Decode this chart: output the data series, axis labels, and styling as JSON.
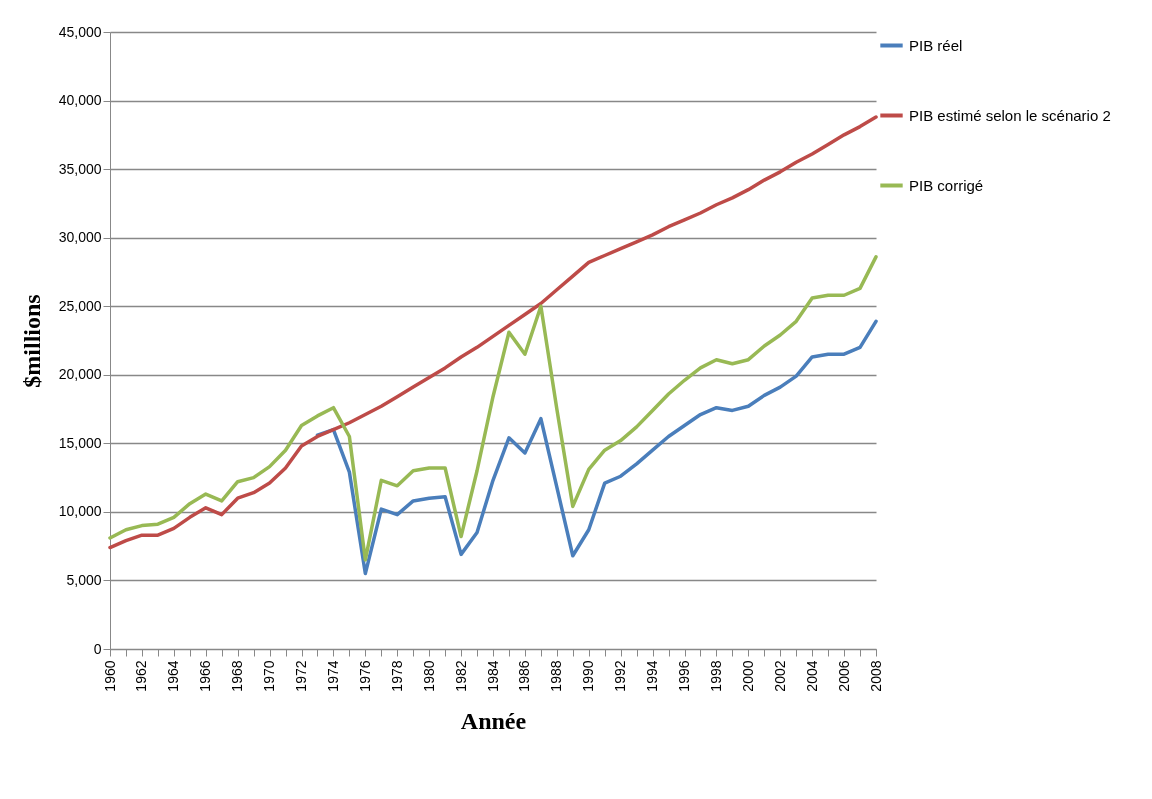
{
  "chart_data": {
    "type": "line",
    "xlabel": "Année",
    "ylabel": "$millions",
    "x": [
      1960,
      1961,
      1962,
      1963,
      1964,
      1965,
      1966,
      1967,
      1968,
      1969,
      1970,
      1971,
      1972,
      1973,
      1974,
      1975,
      1976,
      1977,
      1978,
      1979,
      1980,
      1981,
      1982,
      1983,
      1984,
      1985,
      1986,
      1987,
      1988,
      1989,
      1990,
      1991,
      1992,
      1993,
      1994,
      1995,
      1996,
      1997,
      1998,
      1999,
      2000,
      2001,
      2002,
      2003,
      2004,
      2005,
      2006,
      2007,
      2008
    ],
    "series": [
      {
        "name": "PIB réel",
        "color": "#4a7ebb",
        "values": [
          null,
          null,
          null,
          null,
          null,
          null,
          null,
          null,
          null,
          null,
          null,
          null,
          null,
          15600,
          16000,
          12900,
          5500,
          10200,
          9800,
          10800,
          11000,
          11100,
          6900,
          8500,
          12300,
          15400,
          14300,
          16800,
          11800,
          6800,
          8700,
          12100,
          12600,
          13500,
          14500,
          15500,
          16300,
          17100,
          17600,
          17400,
          17700,
          18500,
          19100,
          19900,
          21300,
          21500,
          21500,
          22000,
          23900
        ]
      },
      {
        "name": "PIB estimé selon le scénario 2",
        "color": "#be4b48",
        "values": [
          7400,
          7900,
          8300,
          8300,
          8800,
          9600,
          10300,
          9800,
          11000,
          11400,
          12100,
          13200,
          14800,
          15500,
          16000,
          16500,
          17100,
          17700,
          18400,
          19100,
          19800,
          20500,
          21300,
          22000,
          22800,
          23600,
          24400,
          25200,
          26200,
          27200,
          28200,
          28700,
          29200,
          29700,
          30200,
          30800,
          31300,
          31800,
          32400,
          32900,
          33500,
          34200,
          34800,
          35500,
          36100,
          36800,
          37500,
          38100,
          38800
        ]
      },
      {
        "name": "PIB corrigé",
        "color": "#98b954",
        "values": [
          8100,
          8700,
          9000,
          9100,
          9600,
          10600,
          11300,
          10800,
          12200,
          12500,
          13300,
          14500,
          16300,
          17000,
          17600,
          15500,
          6500,
          12300,
          11900,
          13000,
          13200,
          13200,
          8200,
          13000,
          18400,
          23100,
          21500,
          25000,
          17500,
          10400,
          13100,
          14500,
          15200,
          16200,
          17400,
          18600,
          19600,
          20500,
          21100,
          20800,
          21100,
          22100,
          22900,
          23900,
          25600,
          25800,
          25800,
          26300,
          28600
        ]
      }
    ],
    "xlim": [
      1960,
      2008
    ],
    "xticks": [
      1960,
      {
        "value": 1961,
        "label": null
      },
      1962,
      {
        "value": 1963,
        "label": null
      },
      1964,
      {
        "value": 1965,
        "label": null
      },
      1966,
      {
        "value": 1967,
        "label": null
      },
      1968,
      {
        "value": 1969,
        "label": null
      },
      1970,
      {
        "value": 1971,
        "label": null
      },
      1972,
      {
        "value": 1973,
        "label": null
      },
      1974,
      {
        "value": 1975,
        "label": null
      },
      1976,
      {
        "value": 1977,
        "label": null
      },
      1978,
      {
        "value": 1979,
        "label": null
      },
      1980,
      {
        "value": 1981,
        "label": null
      },
      1982,
      {
        "value": 1983,
        "label": null
      },
      1984,
      {
        "value": 1985,
        "label": null
      },
      1986,
      {
        "value": 1987,
        "label": null
      },
      1988,
      {
        "value": 1989,
        "label": null
      },
      1990,
      {
        "value": 1991,
        "label": null
      },
      1992,
      {
        "value": 1993,
        "label": null
      },
      1994,
      {
        "value": 1995,
        "label": null
      },
      1996,
      {
        "value": 1997,
        "label": null
      },
      1998,
      {
        "value": 1999,
        "label": null
      },
      2000,
      {
        "value": 2001,
        "label": null
      },
      2002,
      {
        "value": 2003,
        "label": null
      },
      2004,
      {
        "value": 2005,
        "label": null
      },
      2006,
      {
        "value": 2007,
        "label": null
      },
      2008
    ],
    "ylim": [
      0,
      45000
    ],
    "yticks": [
      {
        "value": 0,
        "label": "0"
      },
      {
        "value": 5000,
        "label": "5,000"
      },
      {
        "value": 10000,
        "label": "10,000"
      },
      {
        "value": 15000,
        "label": "15,000"
      },
      {
        "value": 20000,
        "label": "20,000"
      },
      {
        "value": 25000,
        "label": "25,000"
      },
      {
        "value": 30000,
        "label": "30,000"
      },
      {
        "value": 35000,
        "label": "35,000"
      },
      {
        "value": 40000,
        "label": "40,000"
      },
      {
        "value": 45000,
        "label": "45,000"
      }
    ],
    "grid": "y",
    "legend": "right",
    "marker": "none",
    "line_style": "solid"
  }
}
